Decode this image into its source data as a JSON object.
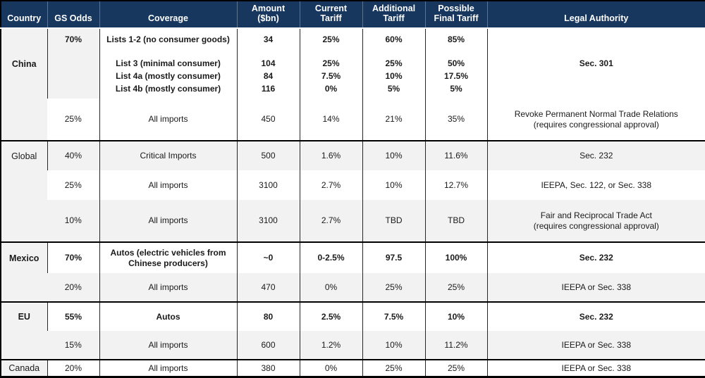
{
  "title": "Tariff scenarios table",
  "colors": {
    "header_bg": "#17375E",
    "header_text": "#FFFFFF",
    "band": "#F2F2F2",
    "border": "#000000",
    "text": "#1A1A1A"
  },
  "chart_data": {
    "type": "table",
    "columns": [
      "Country",
      "GS Odds",
      "Coverage",
      "Amount\n($bn)",
      "Current\nTariff",
      "Additional\nTariff",
      "Possible\nFinal Tariff",
      "Legal Authority"
    ],
    "groups": [
      {
        "country": "China",
        "rows": [
          {
            "bold": true,
            "shaded": false,
            "odds_shaded": true,
            "gs_odds": "70%",
            "coverage_lines": [
              "Lists 1-2 (no consumer goods)",
              "List 3 (minimal consumer)",
              "List 4a (mostly consumer)",
              "List 4b (mostly consumer)"
            ],
            "amount_lines": [
              "34",
              "104",
              "84",
              "116"
            ],
            "current_lines": [
              "25%",
              "25%",
              "7.5%",
              "0%"
            ],
            "additional_lines": [
              "60%",
              "25%",
              "10%",
              "5%"
            ],
            "final_lines": [
              "85%",
              "50%",
              "17.5%",
              "5%"
            ],
            "legal": "Sec. 301"
          },
          {
            "bold": false,
            "shaded": false,
            "gs_odds": "25%",
            "coverage": "All imports",
            "amount": "450",
            "current": "14%",
            "additional": "21%",
            "final": "35%",
            "legal": "Revoke Permanent Normal Trade Relations\n(requires congressional approval)"
          }
        ]
      },
      {
        "country": "Global",
        "rows": [
          {
            "bold": false,
            "shaded": true,
            "gs_odds": "40%",
            "coverage": "Critical Imports",
            "amount": "500",
            "current": "1.6%",
            "additional": "10%",
            "final": "11.6%",
            "legal": "Sec. 232"
          },
          {
            "bold": false,
            "shaded": false,
            "gs_odds": "25%",
            "coverage": "All imports",
            "amount": "3100",
            "current": "2.7%",
            "additional": "10%",
            "final": "12.7%",
            "legal": "IEEPA, Sec. 122, or Sec. 338"
          },
          {
            "bold": false,
            "shaded": true,
            "gs_odds": "10%",
            "coverage": "All imports",
            "amount": "3100",
            "current": "2.7%",
            "additional": "TBD",
            "final": "TBD",
            "legal": "Fair and Reciprocal Trade Act\n(requires congressional approval)"
          }
        ]
      },
      {
        "country": "Mexico",
        "rows": [
          {
            "bold": true,
            "shaded": false,
            "gs_odds": "70%",
            "coverage": "Autos (electric vehicles from\nChinese producers)",
            "amount": "~0",
            "current": "0-2.5%",
            "additional": "97.5",
            "final": "100%",
            "legal": "Sec. 232"
          },
          {
            "bold": false,
            "shaded": true,
            "gs_odds": "20%",
            "coverage": "All imports",
            "amount": "470",
            "current": "0%",
            "additional": "25%",
            "final": "25%",
            "legal": "IEEPA or Sec. 338"
          }
        ]
      },
      {
        "country": "EU",
        "rows": [
          {
            "bold": true,
            "shaded": false,
            "gs_odds": "55%",
            "coverage": "Autos",
            "amount": "80",
            "current": "2.5%",
            "additional": "7.5%",
            "final": "10%",
            "legal": "Sec. 232"
          },
          {
            "bold": false,
            "shaded": true,
            "gs_odds": "15%",
            "coverage": "All imports",
            "amount": "600",
            "current": "1.2%",
            "additional": "10%",
            "final": "11.2%",
            "legal": "IEEPA or Sec. 338"
          }
        ]
      },
      {
        "country": "Canada",
        "rows": [
          {
            "bold": false,
            "shaded": false,
            "gs_odds": "20%",
            "coverage": "All imports",
            "amount": "380",
            "current": "0%",
            "additional": "25%",
            "final": "25%",
            "legal": "IEEPA or Sec. 338"
          }
        ]
      }
    ]
  }
}
